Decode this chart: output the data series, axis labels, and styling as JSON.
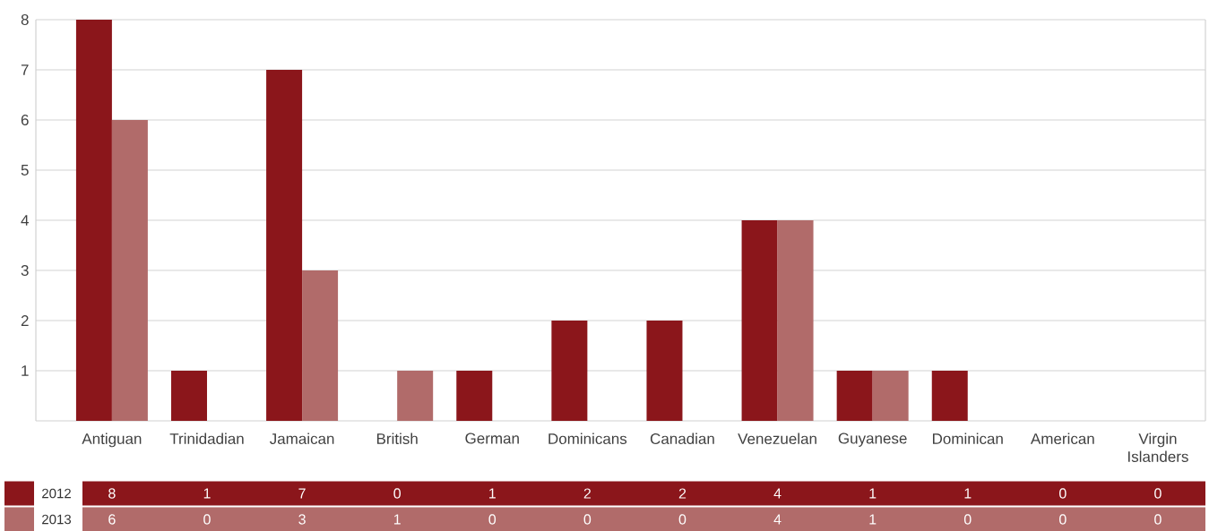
{
  "chart_data": {
    "type": "bar",
    "categories": [
      "Antiguan",
      "Trinidadian",
      "Jamaican",
      "British",
      "German",
      "Dominicans",
      "Canadian",
      "Venezuelan",
      "Guyanese",
      "Dominican",
      "American",
      "Virgin Islanders"
    ],
    "series": [
      {
        "name": "2012",
        "color": "#8b161b",
        "values": [
          8,
          1,
          7,
          0,
          1,
          2,
          2,
          4,
          1,
          1,
          0,
          0
        ]
      },
      {
        "name": "2013",
        "color": "#b16b6a",
        "values": [
          6,
          0,
          3,
          1,
          0,
          0,
          0,
          4,
          1,
          0,
          0,
          0
        ]
      }
    ],
    "ylim": [
      0,
      8
    ],
    "yticks": [
      1,
      2,
      3,
      4,
      5,
      6,
      7,
      8
    ],
    "grid": "y",
    "data_labels": true,
    "legend": "bottom"
  }
}
